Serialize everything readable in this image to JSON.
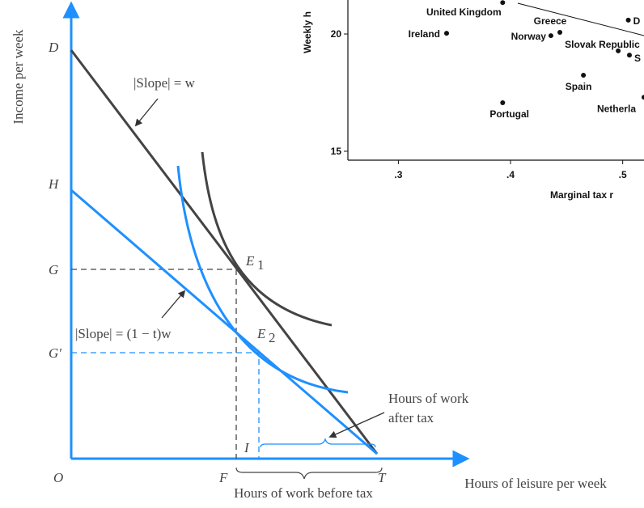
{
  "diagram": {
    "y_axis_label": "Income per week",
    "x_axis_label": "Hours of leisure per week",
    "points": {
      "D": "D",
      "H": "H",
      "G": "G",
      "G2": "G′",
      "O": "O",
      "F": "F",
      "T": "T",
      "I": "I",
      "E1": "E",
      "E1sub": "1",
      "E2": "E",
      "E2sub": "2"
    },
    "slope_before": "|Slope| = w",
    "slope_after": "|Slope| = (1 − t)w",
    "work_before": "Hours of work before tax",
    "work_after": [
      "Hours of work",
      "after tax"
    ]
  },
  "inset": {
    "type": "scatter",
    "y_axis_label": "Weekly h",
    "x_axis_label": "Marginal tax r",
    "xlim": [
      0.255,
      0.519
    ],
    "ylim": [
      14.62,
      21.45
    ],
    "xticks": [
      {
        "value": 0.3,
        "label": ".3"
      },
      {
        "value": 0.4,
        "label": ".4"
      },
      {
        "value": 0.5,
        "label": ".5"
      }
    ],
    "yticks": [
      15,
      20
    ],
    "points": [
      {
        "name": "United Kingdom",
        "x": 0.393,
        "y": 21.34
      },
      {
        "name": "Ireland",
        "x": 0.343,
        "y": 20.03
      },
      {
        "name": "Greece",
        "x": 0.444,
        "y": 20.07
      },
      {
        "name": "Norway",
        "x": 0.436,
        "y": 19.93
      },
      {
        "name": "D",
        "x": 0.505,
        "y": 20.59
      },
      {
        "name": "Slovak Republic",
        "x": 0.496,
        "y": 19.28
      },
      {
        "name": "S",
        "x": 0.506,
        "y": 19.1
      },
      {
        "name": "Spain",
        "x": 0.465,
        "y": 18.24
      },
      {
        "name": "Portugal",
        "x": 0.393,
        "y": 17.07
      },
      {
        "name": "Netherla",
        "x": 0.519,
        "y": 17.3
      }
    ]
  }
}
